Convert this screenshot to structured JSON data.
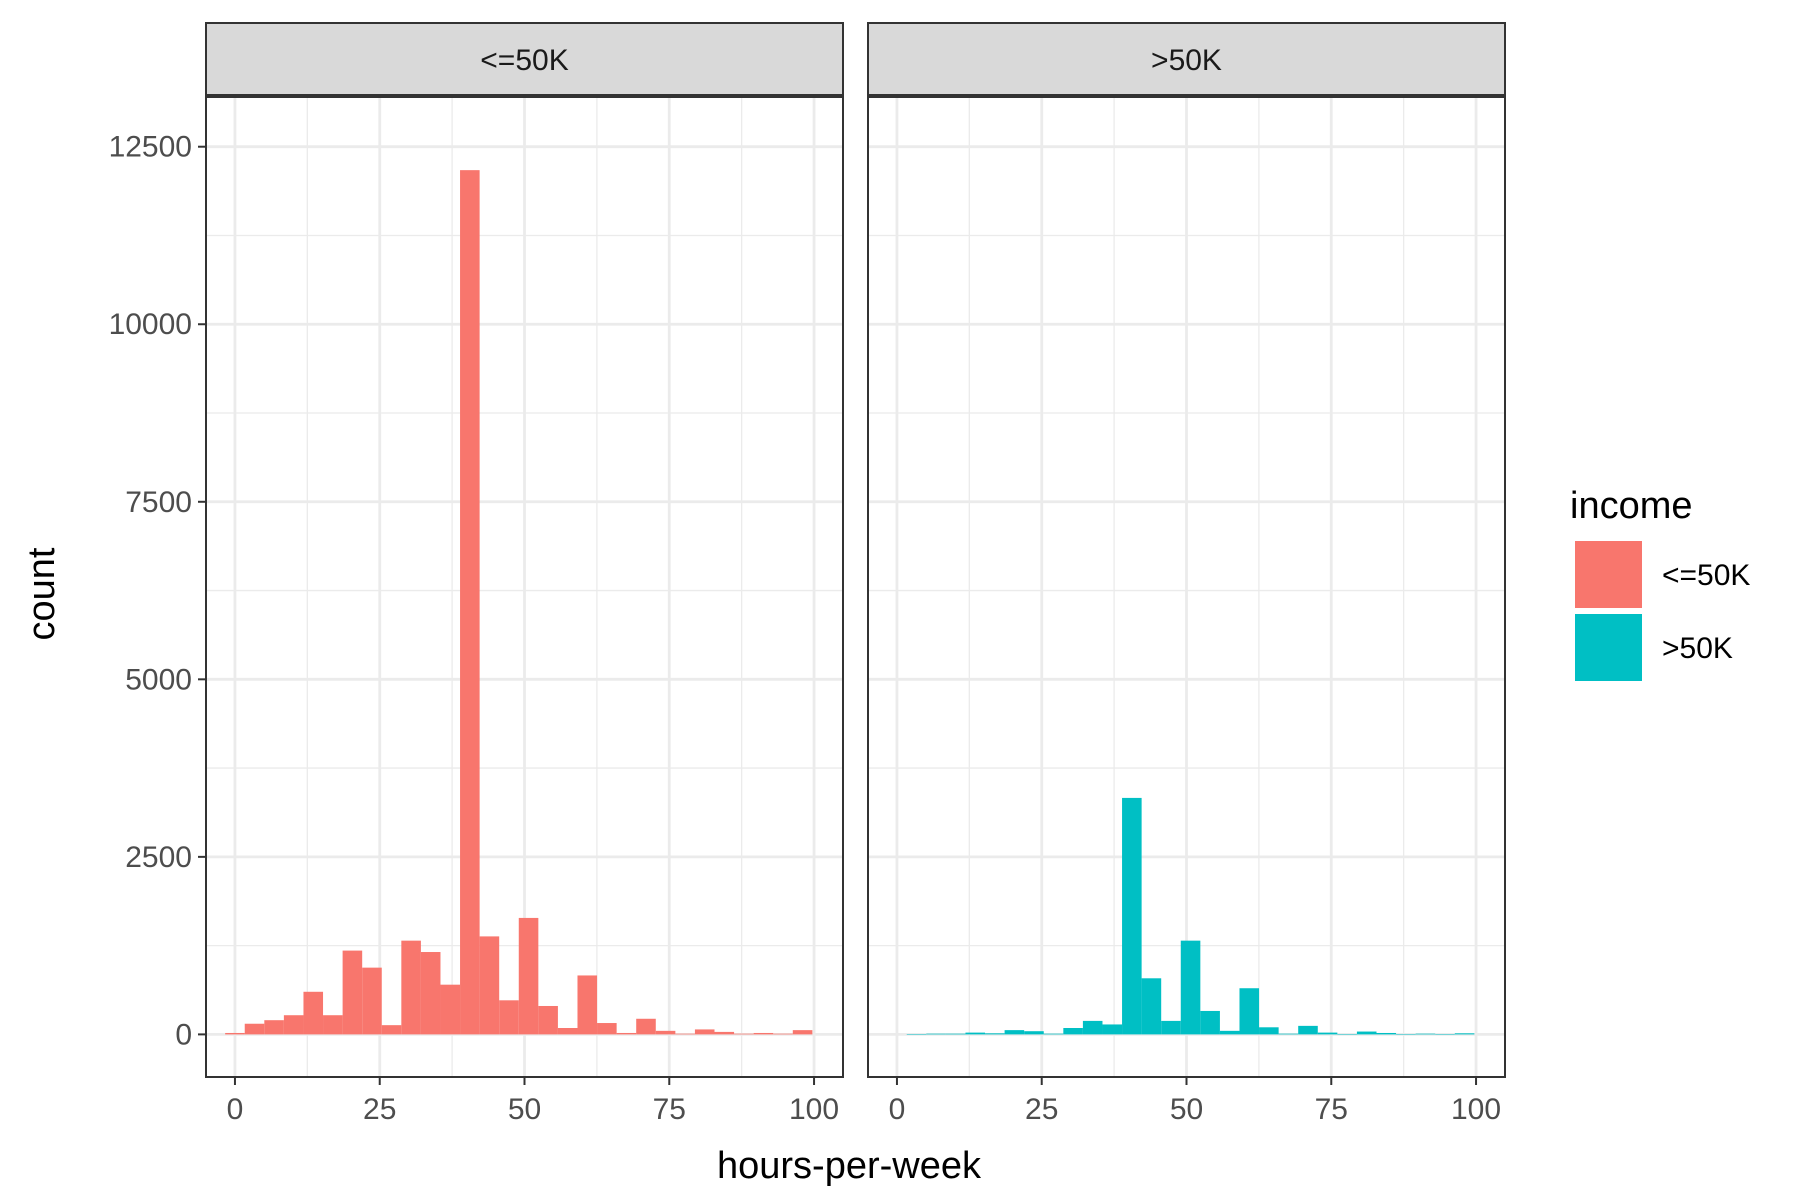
{
  "chart_data": {
    "type": "bar",
    "xlabel": "hours-per-week",
    "ylabel": "count",
    "xlim": [
      -5,
      105
    ],
    "ylim": [
      -600,
      13200
    ],
    "x_ticks": [
      0,
      25,
      50,
      75,
      100
    ],
    "x_minor_ticks": [
      12.5,
      37.5,
      62.5,
      87.5
    ],
    "y_ticks": [
      0,
      2500,
      5000,
      7500,
      10000,
      12500
    ],
    "y_minor_ticks": [
      1250,
      3750,
      6250,
      8750,
      11250
    ],
    "grid": true,
    "legend": {
      "title": "income",
      "placement": "right",
      "entries": [
        {
          "label": "<=50K",
          "color": "#F8766D"
        },
        {
          "label": ">50K",
          "color": "#00BFC4"
        }
      ]
    },
    "panels": [
      {
        "strip_label": "<=50K",
        "color": "#F8766D",
        "bins": [
          {
            "x0": -1.69,
            "x1": 1.69,
            "value": 20
          },
          {
            "x0": 1.69,
            "x1": 5.07,
            "value": 150
          },
          {
            "x0": 5.07,
            "x1": 8.45,
            "value": 200
          },
          {
            "x0": 8.45,
            "x1": 11.83,
            "value": 270
          },
          {
            "x0": 11.83,
            "x1": 15.21,
            "value": 600
          },
          {
            "x0": 15.21,
            "x1": 18.59,
            "value": 270
          },
          {
            "x0": 18.59,
            "x1": 21.97,
            "value": 1180
          },
          {
            "x0": 21.97,
            "x1": 25.35,
            "value": 940
          },
          {
            "x0": 25.35,
            "x1": 28.73,
            "value": 130
          },
          {
            "x0": 28.73,
            "x1": 32.11,
            "value": 1320
          },
          {
            "x0": 32.11,
            "x1": 35.49,
            "value": 1160
          },
          {
            "x0": 35.49,
            "x1": 38.87,
            "value": 700
          },
          {
            "x0": 38.87,
            "x1": 42.25,
            "value": 12170
          },
          {
            "x0": 42.25,
            "x1": 45.63,
            "value": 1380
          },
          {
            "x0": 45.63,
            "x1": 49.01,
            "value": 480
          },
          {
            "x0": 49.01,
            "x1": 52.39,
            "value": 1640
          },
          {
            "x0": 52.39,
            "x1": 55.77,
            "value": 400
          },
          {
            "x0": 55.77,
            "x1": 59.15,
            "value": 90
          },
          {
            "x0": 59.15,
            "x1": 62.53,
            "value": 830
          },
          {
            "x0": 62.53,
            "x1": 65.91,
            "value": 160
          },
          {
            "x0": 65.91,
            "x1": 69.29,
            "value": 20
          },
          {
            "x0": 69.29,
            "x1": 72.67,
            "value": 220
          },
          {
            "x0": 72.67,
            "x1": 76.05,
            "value": 50
          },
          {
            "x0": 76.05,
            "x1": 79.43,
            "value": 10
          },
          {
            "x0": 79.43,
            "x1": 82.81,
            "value": 70
          },
          {
            "x0": 82.81,
            "x1": 86.19,
            "value": 35
          },
          {
            "x0": 86.19,
            "x1": 89.57,
            "value": 10
          },
          {
            "x0": 89.57,
            "x1": 92.95,
            "value": 20
          },
          {
            "x0": 92.95,
            "x1": 96.33,
            "value": 10
          },
          {
            "x0": 96.33,
            "x1": 99.71,
            "value": 60
          }
        ]
      },
      {
        "strip_label": ">50K",
        "color": "#00BFC4",
        "bins": [
          {
            "x0": 1.69,
            "x1": 5.07,
            "value": 5
          },
          {
            "x0": 5.07,
            "x1": 8.45,
            "value": 10
          },
          {
            "x0": 8.45,
            "x1": 11.83,
            "value": 10
          },
          {
            "x0": 11.83,
            "x1": 15.21,
            "value": 25
          },
          {
            "x0": 15.21,
            "x1": 18.59,
            "value": 15
          },
          {
            "x0": 18.59,
            "x1": 21.97,
            "value": 60
          },
          {
            "x0": 21.97,
            "x1": 25.35,
            "value": 45
          },
          {
            "x0": 25.35,
            "x1": 28.73,
            "value": 10
          },
          {
            "x0": 28.73,
            "x1": 32.11,
            "value": 90
          },
          {
            "x0": 32.11,
            "x1": 35.49,
            "value": 190
          },
          {
            "x0": 35.49,
            "x1": 38.87,
            "value": 140
          },
          {
            "x0": 38.87,
            "x1": 42.25,
            "value": 3330
          },
          {
            "x0": 42.25,
            "x1": 45.63,
            "value": 790
          },
          {
            "x0": 45.63,
            "x1": 49.01,
            "value": 190
          },
          {
            "x0": 49.01,
            "x1": 52.39,
            "value": 1320
          },
          {
            "x0": 52.39,
            "x1": 55.77,
            "value": 330
          },
          {
            "x0": 55.77,
            "x1": 59.15,
            "value": 50
          },
          {
            "x0": 59.15,
            "x1": 62.53,
            "value": 650
          },
          {
            "x0": 62.53,
            "x1": 65.91,
            "value": 100
          },
          {
            "x0": 65.91,
            "x1": 69.29,
            "value": 10
          },
          {
            "x0": 69.29,
            "x1": 72.67,
            "value": 120
          },
          {
            "x0": 72.67,
            "x1": 76.05,
            "value": 25
          },
          {
            "x0": 76.05,
            "x1": 79.43,
            "value": 5
          },
          {
            "x0": 79.43,
            "x1": 82.81,
            "value": 40
          },
          {
            "x0": 82.81,
            "x1": 86.19,
            "value": 20
          },
          {
            "x0": 86.19,
            "x1": 89.57,
            "value": 5
          },
          {
            "x0": 89.57,
            "x1": 92.95,
            "value": 10
          },
          {
            "x0": 92.95,
            "x1": 96.33,
            "value": 5
          },
          {
            "x0": 96.33,
            "x1": 99.71,
            "value": 15
          }
        ]
      }
    ]
  }
}
